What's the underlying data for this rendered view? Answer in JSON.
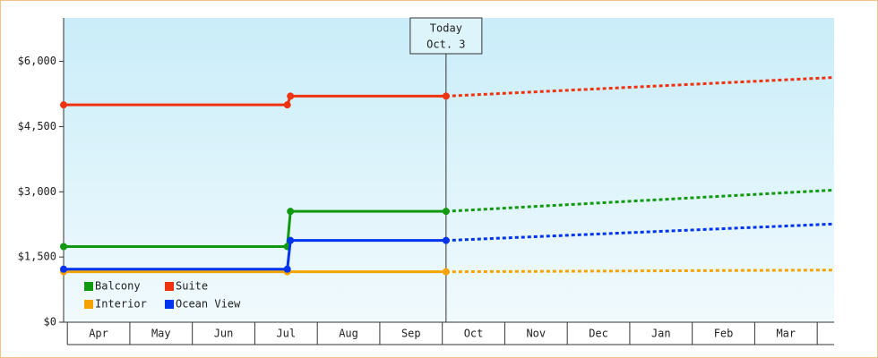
{
  "chart_data": {
    "type": "line",
    "categories": [
      "Apr",
      "May",
      "Jun",
      "Jul",
      "Aug",
      "Sep",
      "Oct",
      "Nov",
      "Dec",
      "Jan",
      "Feb",
      "Mar"
    ],
    "xlim": [
      -0.06,
      12.27
    ],
    "xticks": [
      0,
      1,
      2,
      3,
      4,
      5,
      6,
      7,
      8,
      9,
      10,
      11,
      12
    ],
    "ylim": [
      0,
      7000
    ],
    "yticks": [
      {
        "value": 0,
        "label": "$0"
      },
      {
        "value": 1500,
        "label": "$1,500"
      },
      {
        "value": 3000,
        "label": "$3,000"
      },
      {
        "value": 4500,
        "label": "$4,500"
      },
      {
        "value": 6000,
        "label": "$6,000"
      }
    ],
    "today": {
      "x": 6.06,
      "label": [
        "Today",
        "Oct. 3"
      ]
    },
    "series": [
      {
        "name": "Balcony",
        "color": "#119911",
        "x": [
          -0.06,
          3.52,
          3.57,
          6.06
        ],
        "values": [
          1740,
          1740,
          2550,
          2550
        ],
        "forecast_x": [
          6.06,
          12.27
        ],
        "forecast_values": [
          2550,
          3040
        ]
      },
      {
        "name": "Suite",
        "color": "#ee3311",
        "x": [
          -0.06,
          3.52,
          3.57,
          6.06
        ],
        "values": [
          5000,
          5000,
          5200,
          5200
        ],
        "forecast_x": [
          6.06,
          12.27
        ],
        "forecast_values": [
          5200,
          5630
        ]
      },
      {
        "name": "Interior",
        "color": "#f5a300",
        "x": [
          -0.06,
          3.52,
          6.06
        ],
        "values": [
          1160,
          1160,
          1160
        ],
        "forecast_x": [
          6.06,
          12.27
        ],
        "forecast_values": [
          1160,
          1200
        ]
      },
      {
        "name": "Ocean View",
        "color": "#0033ee",
        "x": [
          -0.06,
          3.52,
          3.57,
          6.06
        ],
        "values": [
          1220,
          1220,
          1880,
          1880
        ],
        "forecast_x": [
          6.06,
          12.27
        ],
        "forecast_values": [
          1880,
          2260
        ]
      }
    ]
  }
}
